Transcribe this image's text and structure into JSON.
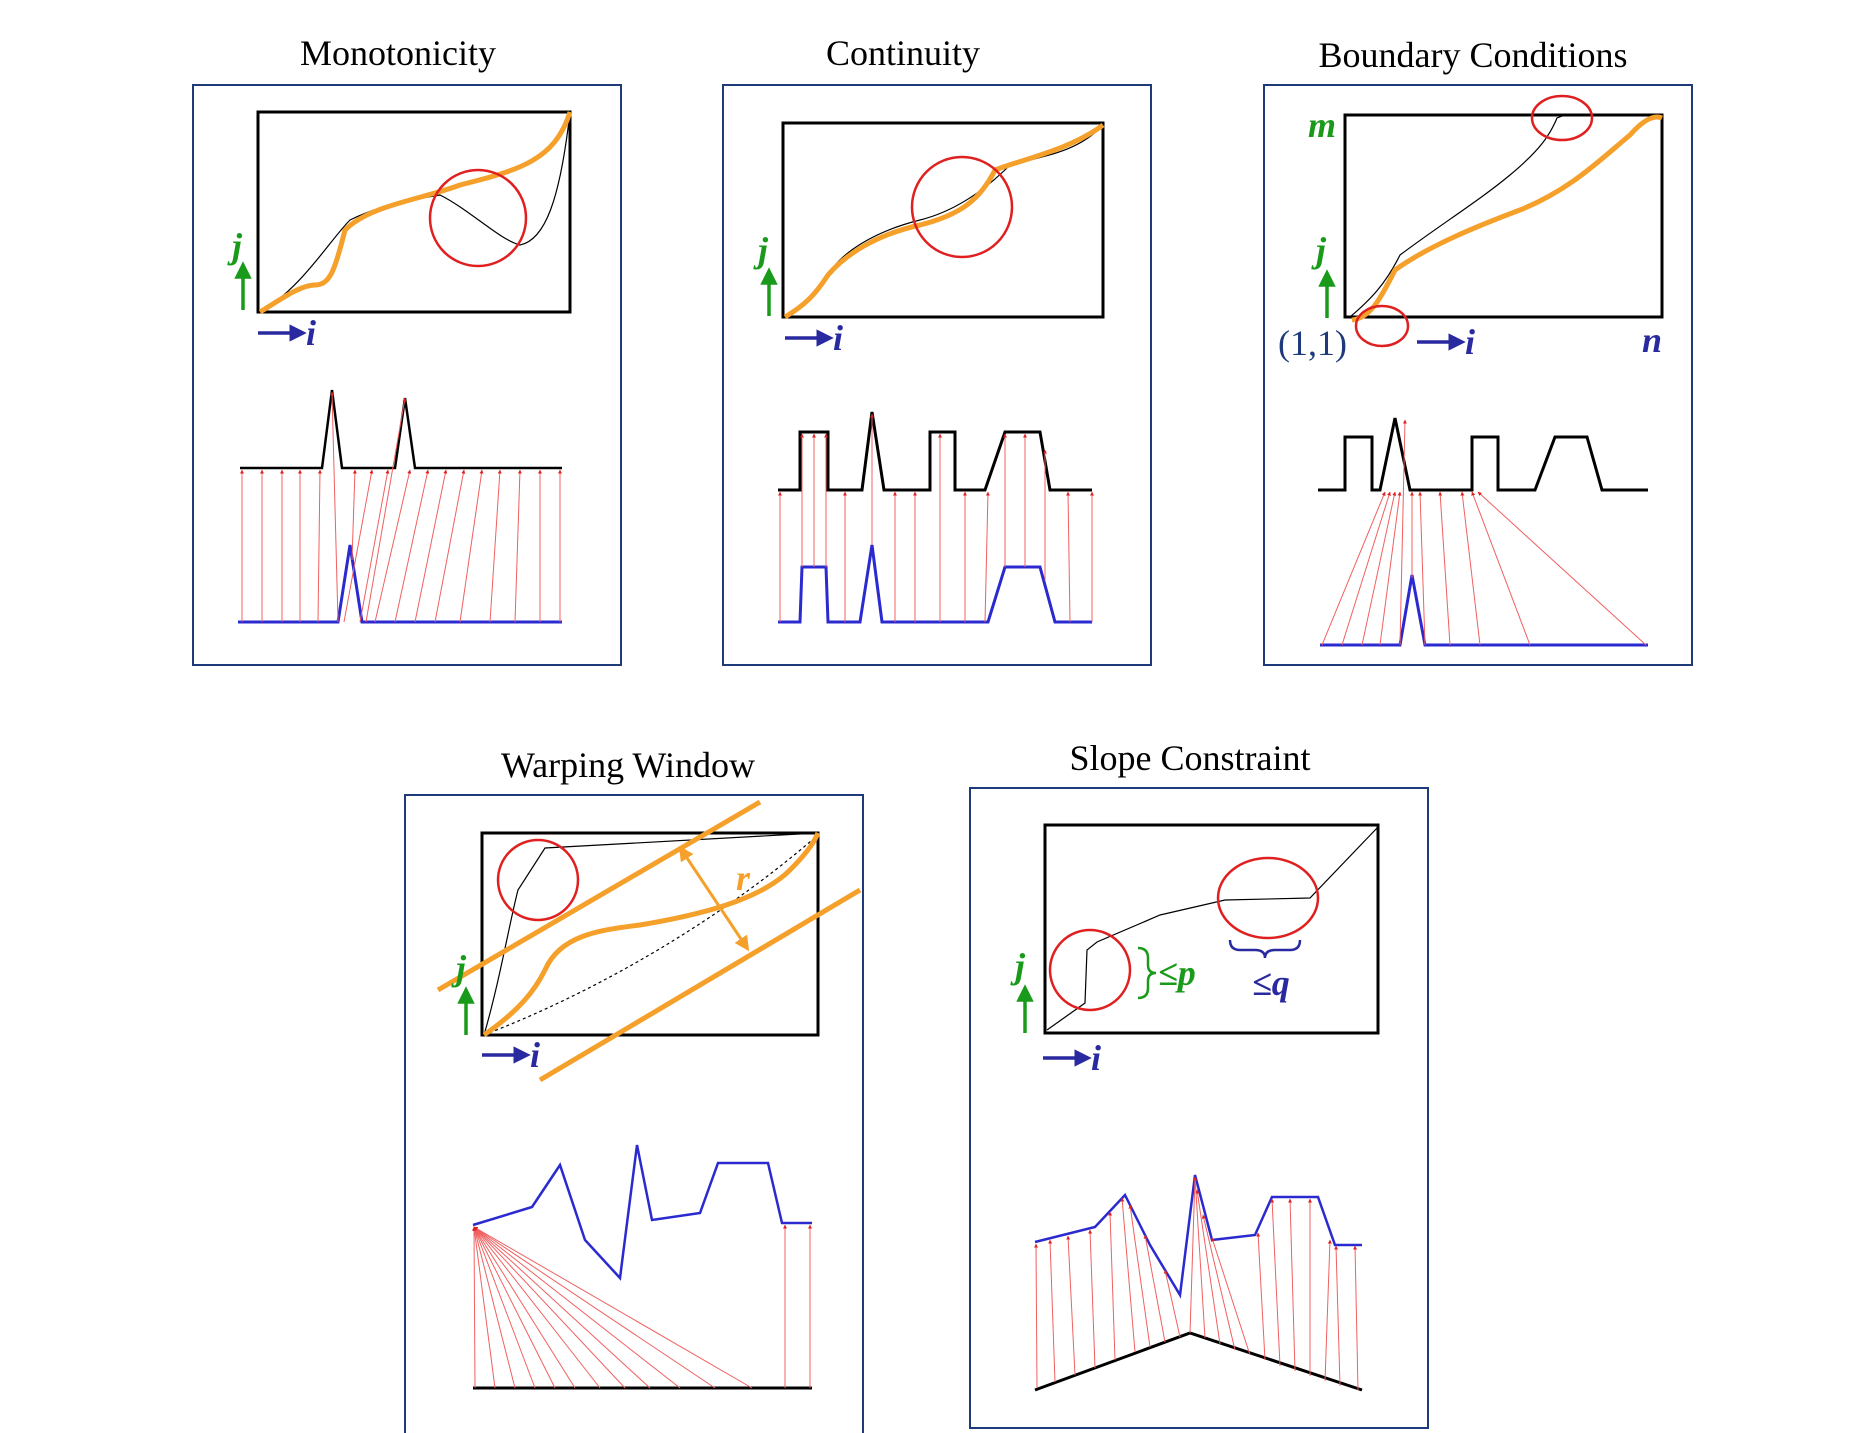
{
  "panels": {
    "monotonicity": {
      "title": "Monotonicity",
      "j_label": "j",
      "i_label": "i"
    },
    "continuity": {
      "title": "Continuity",
      "j_label": "j",
      "i_label": "i"
    },
    "boundary": {
      "title": "Boundary Conditions",
      "m_label": "m",
      "n_label": "n",
      "j_label": "j",
      "i_label": "i",
      "origin_label": "(1,1)"
    },
    "warping": {
      "title": "Warping Window",
      "r_label": "r",
      "j_label": "j",
      "i_label": "i"
    },
    "slope": {
      "title": "Slope Constraint",
      "p_label": "≤p",
      "q_label": "≤q",
      "j_label": "j",
      "i_label": "i"
    }
  },
  "colors": {
    "frame": "#1f3a7a",
    "path_orange": "#f5a02a",
    "circle_red": "#e02020",
    "series_blue": "#2a2ad0",
    "series_black": "#000000",
    "link_red": "#f06060",
    "label_green": "#1a9a1a",
    "label_blue": "#2a2aa0"
  }
}
